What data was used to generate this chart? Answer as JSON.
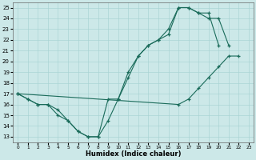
{
  "xlabel": "Humidex (Indice chaleur)",
  "xlim": [
    -0.5,
    23.5
  ],
  "ylim": [
    12.5,
    25.5
  ],
  "yticks": [
    13,
    14,
    15,
    16,
    17,
    18,
    19,
    20,
    21,
    22,
    23,
    24,
    25
  ],
  "xticks": [
    0,
    1,
    2,
    3,
    4,
    5,
    6,
    7,
    8,
    9,
    10,
    11,
    12,
    13,
    14,
    15,
    16,
    17,
    18,
    19,
    20,
    21,
    22,
    23
  ],
  "bg_color": "#cce8e8",
  "grid_color": "#aad4d4",
  "line_color": "#1a6b5a",
  "curves": [
    {
      "x": [
        0,
        1,
        2,
        3,
        4,
        5,
        6,
        7,
        8,
        9,
        10,
        11,
        12,
        13,
        14,
        15,
        16,
        17,
        18,
        19,
        20
      ],
      "y": [
        17,
        16.5,
        16,
        16,
        15.5,
        14.5,
        13.5,
        13,
        13,
        14.5,
        16.5,
        19,
        20.5,
        21.5,
        22,
        23,
        25,
        25,
        24.5,
        24.5,
        21.5
      ]
    },
    {
      "x": [
        0,
        1,
        2,
        3,
        4,
        5,
        6,
        7,
        8,
        9,
        10,
        11,
        12,
        13,
        14,
        15,
        16,
        17,
        18,
        19,
        20,
        21
      ],
      "y": [
        17,
        16.5,
        16,
        16,
        15,
        14.5,
        13.5,
        13,
        13,
        16.5,
        16.5,
        18.5,
        20.5,
        21.5,
        22,
        22.5,
        25,
        25,
        24.5,
        24,
        24,
        21.5
      ]
    },
    {
      "x": [
        0,
        16,
        17,
        18,
        19,
        20,
        21,
        22
      ],
      "y": [
        17,
        16,
        16.5,
        17.5,
        18.5,
        19.5,
        20.5,
        20.5
      ]
    }
  ]
}
